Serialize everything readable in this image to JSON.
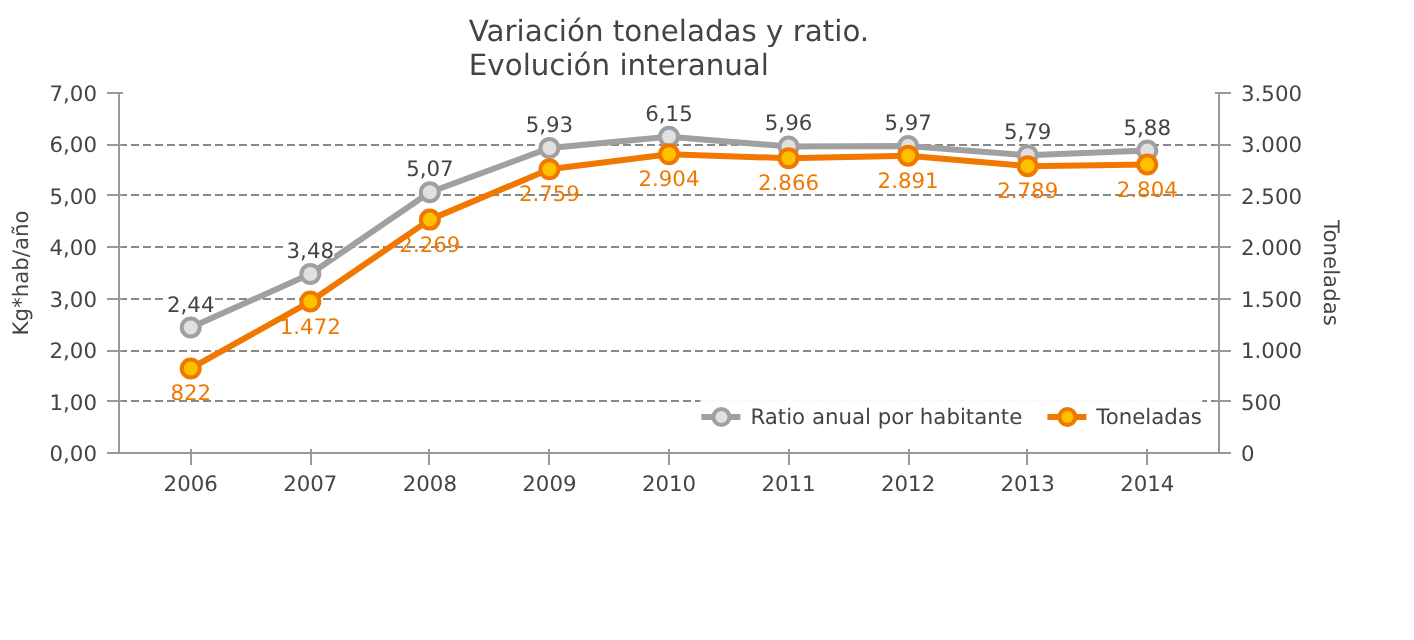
{
  "chart_data": {
    "type": "line",
    "title": "Variación toneladas y ratio.\nEvolución interanual",
    "categories": [
      "2006",
      "2007",
      "2008",
      "2009",
      "2010",
      "2011",
      "2012",
      "2013",
      "2014"
    ],
    "ylabel": "Kg*hab/año",
    "y2label": "Toneladas",
    "ylim": [
      0,
      7
    ],
    "yticks": [
      {
        "value": 0,
        "label": "0,00"
      },
      {
        "value": 1,
        "label": "1,00"
      },
      {
        "value": 2,
        "label": "2,00"
      },
      {
        "value": 3,
        "label": "3,00"
      },
      {
        "value": 4,
        "label": "4,00"
      },
      {
        "value": 5,
        "label": "5,00"
      },
      {
        "value": 6,
        "label": "6,00"
      },
      {
        "value": 7,
        "label": "7,00"
      }
    ],
    "y2lim": [
      0,
      3500
    ],
    "y2ticks": [
      0,
      500,
      {
        "value": 1000,
        "label": "1.000"
      },
      {
        "value": 1500,
        "label": "1.500"
      },
      {
        "value": 2000,
        "label": "2.000"
      },
      {
        "value": 2500,
        "label": "2.500"
      },
      {
        "value": 3000,
        "label": "3.000"
      },
      {
        "value": 3500,
        "label": "3.500"
      }
    ],
    "series": [
      {
        "name": "Ratio anual por habitante",
        "color": "#a0a0a0",
        "values": [
          2.44,
          3.48,
          5.07,
          5.93,
          6.15,
          5.96,
          5.97,
          5.79,
          5.88
        ],
        "value_labels": [
          "2,44",
          "3,48",
          "5,07",
          "5,93",
          "6,15",
          "5,96",
          "5,97",
          "5,79",
          "5,88"
        ]
      },
      {
        "name": "Toneladas",
        "color": "#f07800",
        "axis": "y2",
        "values": [
          822,
          1472,
          2269,
          2759,
          2904,
          2866,
          2891,
          2789,
          2804
        ],
        "value_labels": [
          "822",
          "1.472",
          "2.269",
          "2.759",
          "2.904",
          "2.866",
          "2.891",
          "2.789",
          "2.804"
        ]
      }
    ],
    "marker": "circle",
    "line_style": "solid",
    "grid": "y",
    "legend": "bottom right"
  }
}
